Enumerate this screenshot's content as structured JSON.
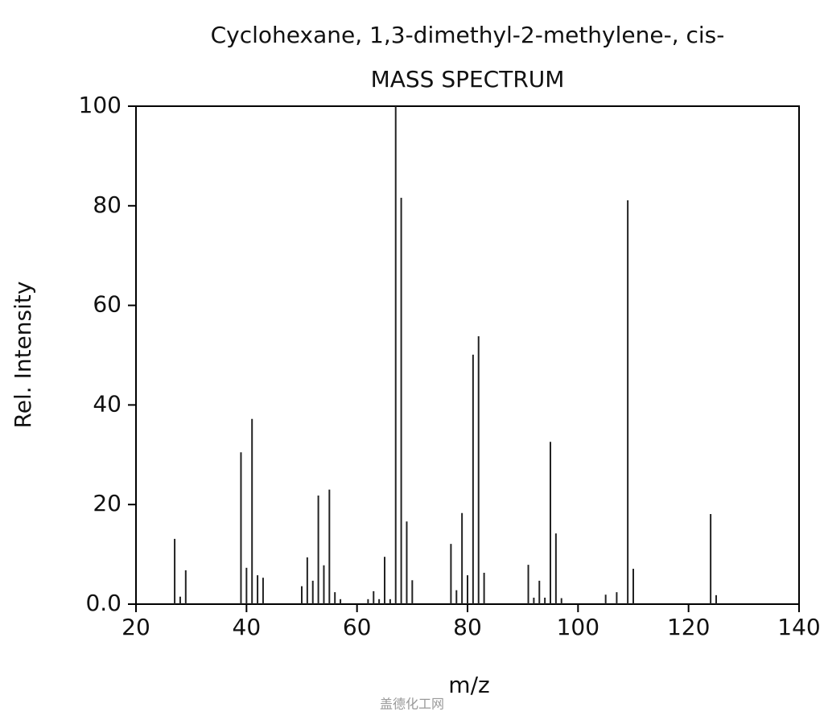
{
  "chart_data": {
    "type": "bar",
    "title": "Cyclohexane, 1,3-dimethyl-2-methylene-, cis-",
    "subtitle": "MASS SPECTRUM",
    "x_label": "m/z",
    "y_label": "Rel. Intensity",
    "watermark": "盖德化工网",
    "color": "#222222",
    "x": [
      27,
      28,
      29,
      39,
      40,
      41,
      42,
      43,
      50,
      51,
      52,
      53,
      54,
      55,
      56,
      57,
      62,
      63,
      64,
      65,
      66,
      67,
      68,
      69,
      70,
      77,
      78,
      79,
      80,
      81,
      82,
      83,
      91,
      92,
      93,
      94,
      95,
      96,
      97,
      105,
      107,
      109,
      110,
      124,
      125
    ],
    "values": [
      13.1,
      1.5,
      6.8,
      30.5,
      7.3,
      37.2,
      5.8,
      5.3,
      3.6,
      9.4,
      4.7,
      21.8,
      7.8,
      23,
      2.4,
      1,
      1,
      2.6,
      1,
      9.5,
      1,
      100,
      81.6,
      16.6,
      4.8,
      12.1,
      2.8,
      18.3,
      5.8,
      50.1,
      53.8,
      6.3,
      7.9,
      1.3,
      4.7,
      1.3,
      32.6,
      14.2,
      1.2,
      1.9,
      2.4,
      81.1,
      7.1,
      18.1,
      1.8
    ],
    "xlim": [
      20,
      140
    ],
    "xticks": [
      20,
      40,
      60,
      80,
      100,
      120,
      140
    ],
    "ylim": [
      0,
      100
    ],
    "yticks": [
      {
        "value": 0,
        "label": "0.0"
      },
      20,
      40,
      60,
      80,
      100
    ]
  }
}
